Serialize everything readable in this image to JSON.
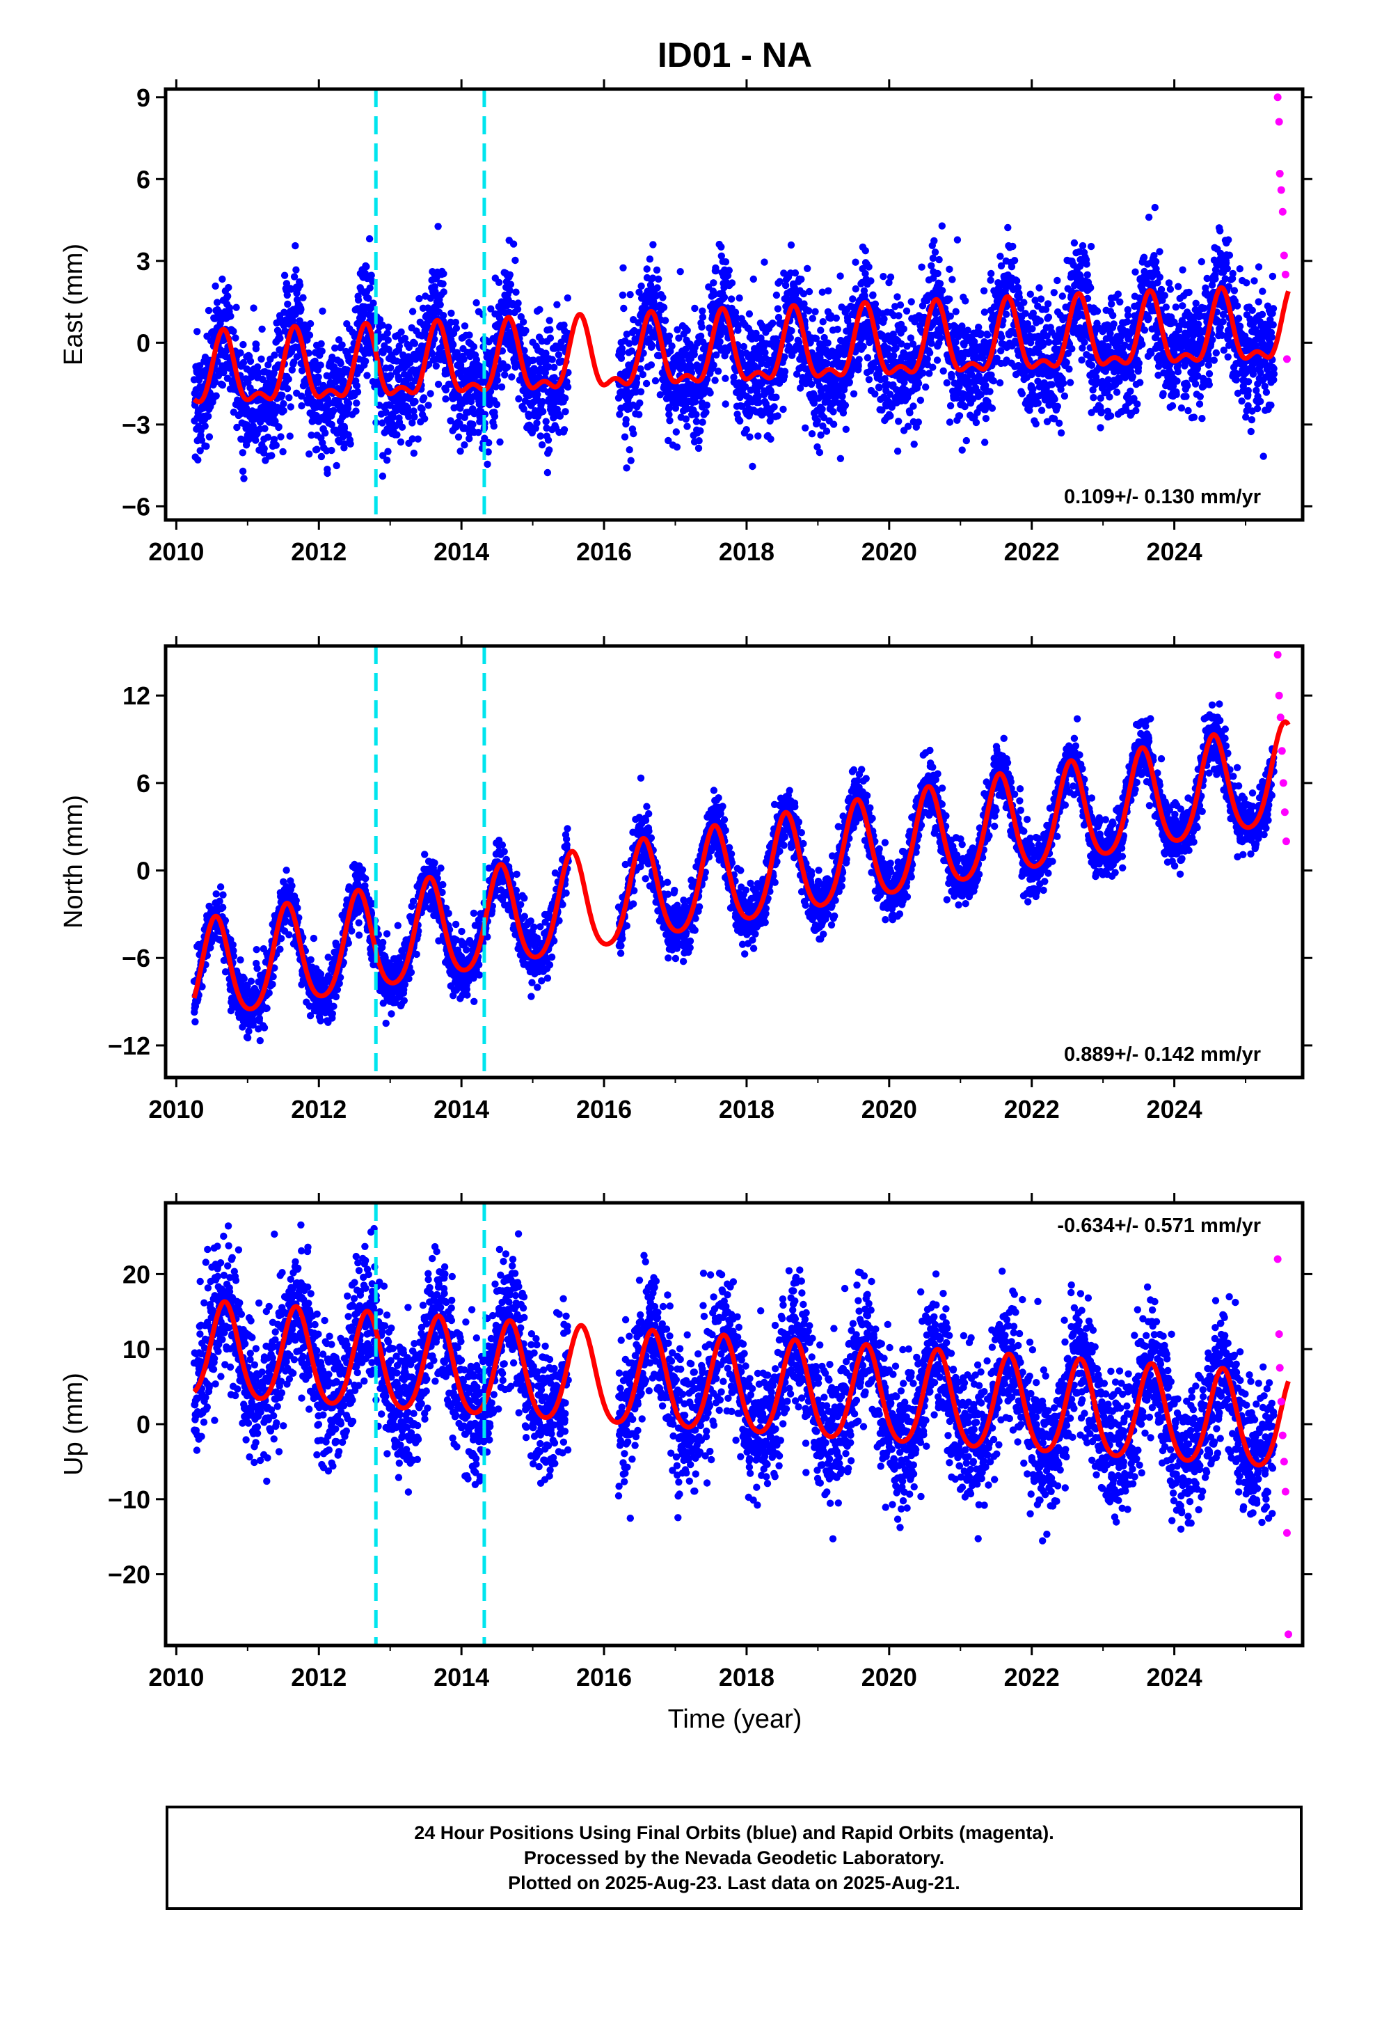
{
  "figure": {
    "title": "ID01 - NA",
    "xlabel": "Time (year)"
  },
  "footer": {
    "line1": "24 Hour Positions Using Final Orbits (blue) and Rapid Orbits (magenta).",
    "line2": "Processed by the Nevada Geodetic Laboratory.",
    "line3": "Plotted on 2025-Aug-23. Last data on 2025-Aug-21."
  },
  "colors": {
    "final_orbits": "#0000ff",
    "rapid_orbits": "#ff00ff",
    "model_fit": "#ff0000",
    "equipment_change": "#00e5ee"
  },
  "chart_data": [
    {
      "type": "scatter",
      "id": "east",
      "ylabel": "East (mm)",
      "xlim": [
        2009.85,
        2025.8
      ],
      "ylim": [
        -6.5,
        9.3
      ],
      "xticks": [
        2010,
        2012,
        2014,
        2016,
        2018,
        2020,
        2022,
        2024
      ],
      "yticks": [
        -6,
        -3,
        0,
        3,
        6,
        9
      ],
      "ytick_labels": [
        "−6",
        "−3",
        "0",
        "3",
        "6",
        "9"
      ],
      "rate_label": "0.109+/- 0.130 mm/yr",
      "rate_position": "bottom-right",
      "breaks": [
        2012.8,
        2014.32
      ],
      "gaps": [
        [
          2015.5,
          2016.2
        ]
      ],
      "seasonal": {
        "offset_start": -1.3,
        "slope": 0.109,
        "annual_amp": 1.2,
        "annual_peak_phase": 0.66,
        "semiannual_amp": 0.55,
        "noise_sigma": 1.1
      },
      "series": [
        {
          "name": "Final Orbits",
          "role": "points-blue",
          "x_range": [
            2010.25,
            2025.4
          ]
        },
        {
          "name": "Rapid Orbits",
          "role": "points-magenta",
          "x": [
            2025.45,
            2025.47,
            2025.48,
            2025.5,
            2025.52,
            2025.54,
            2025.56,
            2025.58
          ],
          "y": [
            9.0,
            8.1,
            6.2,
            5.6,
            4.8,
            3.2,
            2.5,
            -0.6
          ]
        },
        {
          "name": "Model Fit",
          "role": "fit-red",
          "x_range": [
            2010.25,
            2025.6
          ]
        }
      ]
    },
    {
      "type": "scatter",
      "id": "north",
      "ylabel": "North (mm)",
      "xlim": [
        2009.85,
        2025.8
      ],
      "ylim": [
        -14.2,
        15.4
      ],
      "xticks": [
        2010,
        2012,
        2014,
        2016,
        2018,
        2020,
        2022,
        2024
      ],
      "yticks": [
        -12,
        -6,
        0,
        6,
        12
      ],
      "ytick_labels": [
        "−12",
        "−6",
        "0",
        "6",
        "12"
      ],
      "rate_label": "0.889+/- 0.142 mm/yr",
      "rate_position": "bottom-right",
      "breaks": [
        2012.8,
        2014.32
      ],
      "gaps": [
        [
          2015.5,
          2016.2
        ]
      ],
      "seasonal": {
        "offset_start": -7.3,
        "slope": 0.889,
        "annual_amp": 3.4,
        "annual_peak_phase": 0.55,
        "semiannual_amp": 0.5,
        "noise_sigma": 1.0
      },
      "series": [
        {
          "name": "Final Orbits",
          "role": "points-blue",
          "x_range": [
            2010.25,
            2025.4
          ]
        },
        {
          "name": "Rapid Orbits",
          "role": "points-magenta",
          "x": [
            2025.45,
            2025.47,
            2025.49,
            2025.51,
            2025.53,
            2025.55,
            2025.57
          ],
          "y": [
            14.8,
            12.0,
            10.5,
            8.2,
            6.0,
            4.0,
            2.0
          ]
        },
        {
          "name": "Model Fit",
          "role": "fit-red",
          "x_range": [
            2010.25,
            2025.6
          ]
        }
      ]
    },
    {
      "type": "scatter",
      "id": "up",
      "ylabel": "Up (mm)",
      "xlim": [
        2009.85,
        2025.8
      ],
      "ylim": [
        -29.5,
        29.5
      ],
      "xticks": [
        2010,
        2012,
        2014,
        2016,
        2018,
        2020,
        2022,
        2024
      ],
      "yticks": [
        -20,
        -10,
        0,
        10,
        20
      ],
      "ytick_labels": [
        "−20",
        "−10",
        "0",
        "10",
        "20"
      ],
      "rate_label": "-0.634+/- 0.571 mm/yr",
      "rate_position": "top-right",
      "breaks": [
        2012.8,
        2014.32
      ],
      "gaps": [
        [
          2015.5,
          2016.2
        ]
      ],
      "seasonal": {
        "offset_start": 9.5,
        "slope": -0.634,
        "annual_amp": 6.3,
        "annual_peak_phase": 0.68,
        "semiannual_amp": 0.8,
        "noise_sigma": 4.5
      },
      "series": [
        {
          "name": "Final Orbits",
          "role": "points-blue",
          "x_range": [
            2010.25,
            2025.4
          ]
        },
        {
          "name": "Rapid Orbits",
          "role": "points-magenta",
          "x": [
            2025.45,
            2025.47,
            2025.48,
            2025.5,
            2025.52,
            2025.54,
            2025.56,
            2025.58,
            2025.6
          ],
          "y": [
            22.0,
            12.0,
            7.5,
            3.0,
            -1.5,
            -5.0,
            -9.0,
            -14.5,
            -28.0
          ]
        },
        {
          "name": "Model Fit",
          "role": "fit-red",
          "x_range": [
            2010.25,
            2025.6
          ]
        }
      ]
    }
  ]
}
